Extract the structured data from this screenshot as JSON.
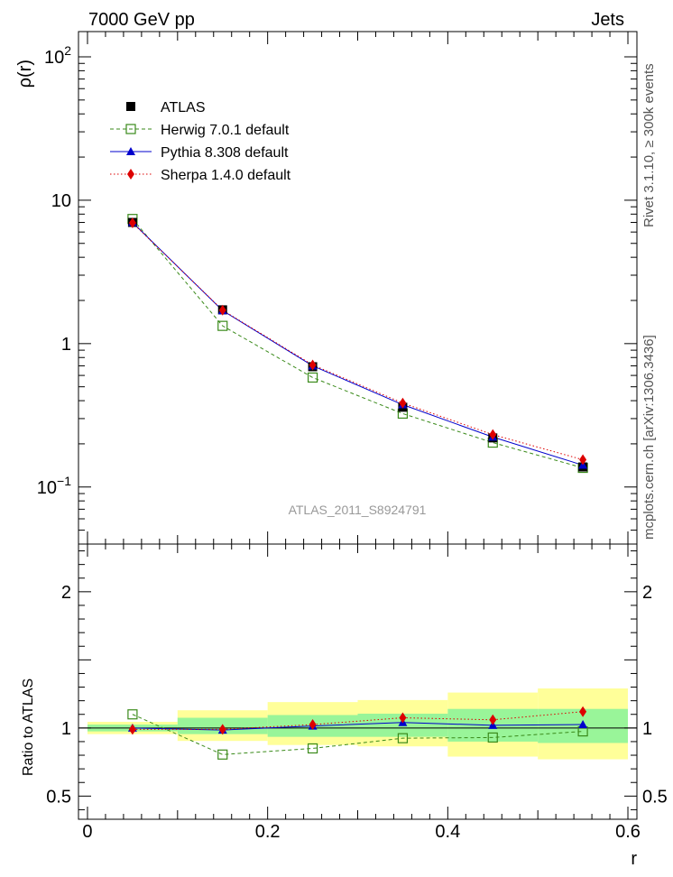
{
  "header": {
    "left": "7000 GeV pp",
    "right": "Jets"
  },
  "side_labels": {
    "rivet": "Rivet 3.1.10, ≥ 300k events",
    "mcplots": "mcplots.cern.ch [arXiv:1306.3436]"
  },
  "watermark": "ATLAS_2011_S8924791",
  "chart_data": [
    {
      "type": "scatter",
      "panel": "main",
      "ylabel": "ρ(r)",
      "xlabel": "",
      "y_scale": "log",
      "xlim": [
        -0.01,
        0.61
      ],
      "ylim": [
        0.04,
        150
      ],
      "yticks": [
        {
          "value": 100,
          "base": "10",
          "exp": "2"
        },
        {
          "value": 10,
          "base": "10",
          "exp": ""
        },
        {
          "value": 1,
          "base": "1",
          "exp": ""
        },
        {
          "value": 0.1,
          "base": "10",
          "exp": "−1"
        }
      ],
      "x": [
        0.05,
        0.15,
        0.25,
        0.35,
        0.45,
        0.55
      ],
      "series": [
        {
          "name": "ATLAS",
          "values": [
            7.0,
            1.72,
            0.69,
            0.36,
            0.22,
            0.138
          ],
          "color": "#000000",
          "marker": "square-filled",
          "line": "none"
        },
        {
          "name": "Herwig 7.0.1 default",
          "values": [
            7.4,
            1.33,
            0.58,
            0.325,
            0.204,
            0.136
          ],
          "color": "#3a8a1a",
          "marker": "square-open",
          "line": "dashed"
        },
        {
          "name": "Pythia 8.308 default",
          "values": [
            7.0,
            1.7,
            0.7,
            0.375,
            0.223,
            0.142
          ],
          "color": "#0000cc",
          "marker": "triangle",
          "line": "solid"
        },
        {
          "name": "Sherpa 1.4.0 default",
          "values": [
            6.95,
            1.71,
            0.71,
            0.385,
            0.232,
            0.155
          ],
          "color": "#dd0000",
          "marker": "diamond",
          "line": "dotted"
        }
      ],
      "legend_position": "top-left",
      "grid": false
    },
    {
      "type": "scatter",
      "panel": "ratio",
      "ylabel": "Ratio to ATLAS",
      "xlabel": "r",
      "xlim": [
        -0.01,
        0.61
      ],
      "ylim": [
        0.33,
        2.35
      ],
      "xticks": [
        {
          "value": 0,
          "label": "0"
        },
        {
          "value": 0.2,
          "label": "0.2"
        },
        {
          "value": 0.4,
          "label": "0.4"
        },
        {
          "value": 0.6,
          "label": "0.6"
        }
      ],
      "yticks": [
        {
          "value": 2,
          "label": "2"
        },
        {
          "value": 1,
          "label": "1"
        },
        {
          "value": 0.5,
          "label": "0.5"
        }
      ],
      "bands": {
        "x_edges": [
          0.0,
          0.1,
          0.2,
          0.3,
          0.4,
          0.5,
          0.6
        ],
        "yellow": [
          [
            0.955,
            1.045
          ],
          [
            0.905,
            1.13
          ],
          [
            0.875,
            1.19
          ],
          [
            0.865,
            1.205
          ],
          [
            0.79,
            1.26
          ],
          [
            0.77,
            1.29
          ]
        ],
        "green": [
          [
            0.975,
            1.025
          ],
          [
            0.955,
            1.075
          ],
          [
            0.935,
            1.095
          ],
          [
            0.935,
            1.105
          ],
          [
            0.9,
            1.14
          ],
          [
            0.89,
            1.14
          ]
        ],
        "colors": {
          "yellow": "#ffff99",
          "green": "#99f599"
        }
      },
      "x": [
        0.05,
        0.15,
        0.25,
        0.35,
        0.45,
        0.55
      ],
      "series": [
        {
          "name": "Herwig 7.0.1 default",
          "values": [
            1.1,
            0.805,
            0.85,
            0.925,
            0.93,
            0.975
          ],
          "color": "#3a8a1a",
          "marker": "square-open",
          "line": "dashed"
        },
        {
          "name": "Pythia 8.308 default",
          "values": [
            1.0,
            0.985,
            1.015,
            1.04,
            1.02,
            1.025
          ],
          "color": "#0000cc",
          "marker": "triangle",
          "line": "solid"
        },
        {
          "name": "Sherpa 1.4.0 default",
          "values": [
            0.99,
            0.99,
            1.025,
            1.075,
            1.06,
            1.12
          ],
          "color": "#dd0000",
          "marker": "diamond",
          "line": "dotted"
        }
      ],
      "reference_line": 1,
      "grid": false
    }
  ]
}
